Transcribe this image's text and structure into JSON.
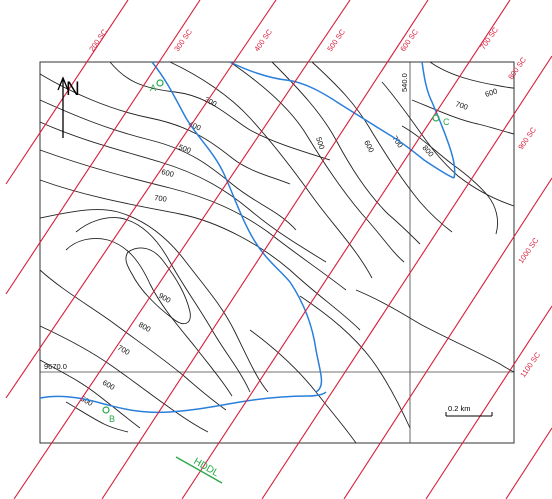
{
  "colors": {
    "section_line": "#d81e3c",
    "stream": "#2a7fdc",
    "contour": "#222222",
    "point": "#2aa84a",
    "hddl": "#2aa84a"
  },
  "north_arrow": {
    "label": "N"
  },
  "grid_labels": {
    "easting": "540.0",
    "northing": "9670.0"
  },
  "section_lines": [
    "200 SC",
    "300 SC",
    "400 SC",
    "500 SC",
    "600 SC",
    "700 SC",
    "800 SC",
    "900 SC",
    "1000 SC",
    "1100 SC"
  ],
  "contour_labels": [
    "300",
    "400",
    "500",
    "600",
    "700",
    "500",
    "600",
    "700",
    "800",
    "600",
    "700",
    "900",
    "800",
    "700",
    "600",
    "500"
  ],
  "points": [
    {
      "label": "A"
    },
    {
      "label": "B"
    },
    {
      "label": "C"
    }
  ],
  "scale_bar": {
    "label": "0.2 km"
  },
  "hddl_label": "HDDL"
}
